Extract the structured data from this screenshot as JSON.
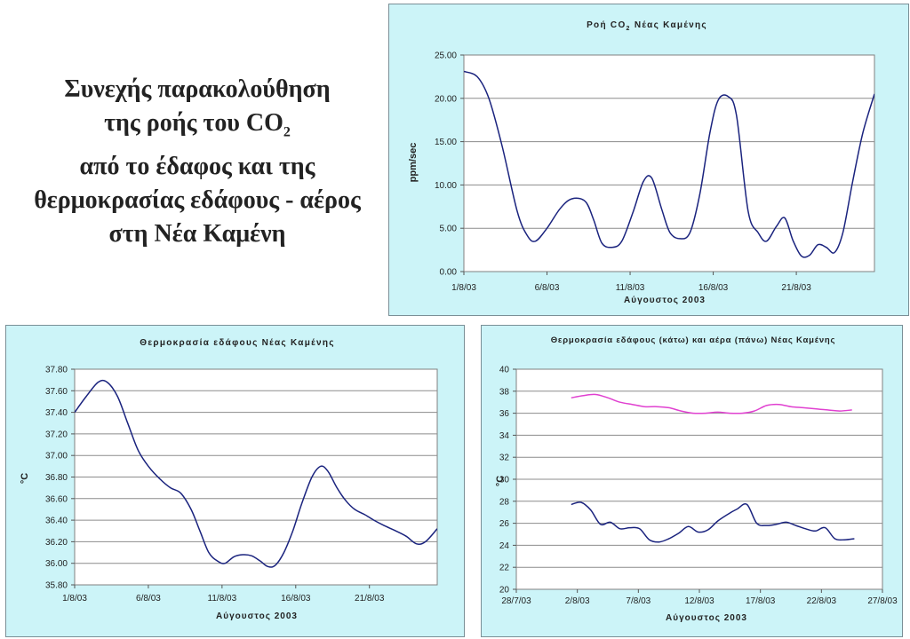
{
  "heading": {
    "line1": "Συνεχής παρακολούθηση",
    "line2_pre": "της ροής του CO",
    "line2_sub": "2",
    "line3": "από το έδαφος και της",
    "line4": "θερμοκρασίας εδάφους - αέρος",
    "line5": "στη Νέα Καμένη"
  },
  "chart_data": [
    {
      "type": "line",
      "title_pre": "Ροή CO",
      "title_sub": "2",
      "title_post": " Νέας Καμένης",
      "xlabel": "Αύγουστος 2003",
      "ylabel": "ppm/sec",
      "x_ticks": [
        "1/8/03",
        "6/8/03",
        "11/8/03",
        "16/8/03",
        "21/8/03"
      ],
      "x_tick_days": [
        1,
        6,
        11,
        16,
        21
      ],
      "xlim": [
        1,
        25.7
      ],
      "ylim": [
        0,
        25
      ],
      "y_ticks": [
        "0.00",
        "5.00",
        "10.00",
        "15.00",
        "20.00",
        "25.00"
      ],
      "y_tick_values": [
        0,
        5,
        10,
        15,
        20,
        25
      ],
      "grid": true,
      "series": [
        {
          "color": "#1a237e",
          "x": [
            1,
            1.8,
            2.5,
            3.3,
            4.2,
            4.8,
            5.3,
            6,
            6.8,
            7.5,
            8.3,
            8.8,
            9.3,
            9.9,
            10.5,
            11.2,
            11.8,
            12.3,
            12.9,
            13.4,
            14,
            14.6,
            15.2,
            15.8,
            16.3,
            16.9,
            17.4,
            18.1,
            18.7,
            19.2,
            19.8,
            20.3,
            20.8,
            21.3,
            21.8,
            22.3,
            22.8,
            23.3,
            23.8,
            24.4,
            25,
            25.7
          ],
          "values": [
            23.1,
            22.5,
            20,
            14.5,
            7,
            4.2,
            3.5,
            5,
            7.3,
            8.4,
            8.1,
            6,
            3.3,
            2.8,
            3.5,
            7,
            10.4,
            10.8,
            7.2,
            4.5,
            3.8,
            4.5,
            9,
            16,
            19.8,
            20.2,
            18,
            7,
            4.5,
            3.5,
            5.2,
            6.2,
            3.6,
            1.8,
            1.9,
            3.1,
            2.8,
            2.2,
            4.5,
            10.5,
            16,
            20.5
          ]
        }
      ]
    },
    {
      "type": "line",
      "title": "Θερμοκρασία εδάφους Νέας Καμένης",
      "xlabel": "Αύγουστος 2003",
      "ylabel": "°C",
      "x_ticks": [
        "1/8/03",
        "6/8/03",
        "11/8/03",
        "16/8/03",
        "21/8/03"
      ],
      "x_tick_days": [
        1,
        6,
        11,
        16,
        21
      ],
      "xlim": [
        1,
        25.6
      ],
      "ylim": [
        35.8,
        37.8
      ],
      "y_ticks": [
        "35.80",
        "36.00",
        "36.20",
        "36.40",
        "36.60",
        "36.80",
        "37.00",
        "37.20",
        "37.40",
        "37.60",
        "37.80"
      ],
      "y_tick_values": [
        35.8,
        36,
        36.2,
        36.4,
        36.6,
        36.8,
        37,
        37.2,
        37.4,
        37.6,
        37.8
      ],
      "grid": true,
      "series": [
        {
          "color": "#1a237e",
          "x": [
            1,
            1.8,
            2.6,
            3.2,
            3.9,
            4.6,
            5.3,
            6,
            6.8,
            7.5,
            8.2,
            8.9,
            9.5,
            10.1,
            10.7,
            11.2,
            11.8,
            12.4,
            13,
            13.6,
            14.1,
            14.6,
            15.2,
            15.8,
            16.4,
            17.1,
            17.7,
            18.2,
            18.8,
            19.4,
            20,
            20.7,
            21.3,
            22,
            22.8,
            23.5,
            24.2,
            24.8,
            25.6
          ],
          "values": [
            37.4,
            37.55,
            37.68,
            37.68,
            37.55,
            37.3,
            37.05,
            36.9,
            36.78,
            36.7,
            36.65,
            36.5,
            36.3,
            36.1,
            36.02,
            36,
            36.06,
            36.08,
            36.07,
            36.02,
            35.97,
            35.98,
            36.1,
            36.3,
            36.55,
            36.8,
            36.9,
            36.85,
            36.7,
            36.58,
            36.5,
            36.45,
            36.4,
            36.35,
            36.3,
            36.25,
            36.18,
            36.2,
            36.32
          ]
        }
      ]
    },
    {
      "type": "line",
      "title": "Θερμοκρασία εδάφους (κάτω) και αέρα (πάνω) Νέας Καμένης",
      "xlabel": "Αύγουστος 2003",
      "ylabel": "°C",
      "x_ticks": [
        "28/7/03",
        "2/8/03",
        "7/8/03",
        "12/8/03",
        "17/8/03",
        "22/8/03",
        "27/8/03"
      ],
      "x_tick_days": [
        -4,
        1,
        6,
        11,
        16,
        21,
        26
      ],
      "xlim": [
        -4,
        26
      ],
      "ylim": [
        20,
        40
      ],
      "y_ticks": [
        "20",
        "22",
        "24",
        "26",
        "28",
        "30",
        "32",
        "34",
        "36",
        "38",
        "40"
      ],
      "y_tick_values": [
        20,
        22,
        24,
        26,
        28,
        30,
        32,
        34,
        36,
        38,
        40
      ],
      "grid": true,
      "series": [
        {
          "color": "#e040d0",
          "x": [
            0.5,
            1.5,
            2.5,
            3.5,
            4.5,
            5.5,
            6.5,
            7.5,
            8.5,
            9.5,
            10.5,
            11.5,
            12.5,
            13.5,
            14.5,
            15.5,
            16.5,
            17.5,
            18.5,
            19.5,
            20.5,
            21.5,
            22.5,
            23.5
          ],
          "values": [
            37.4,
            37.6,
            37.7,
            37.4,
            37,
            36.8,
            36.6,
            36.6,
            36.5,
            36.2,
            36,
            36,
            36.1,
            36,
            36,
            36.2,
            36.7,
            36.8,
            36.6,
            36.5,
            36.4,
            36.3,
            36.2,
            36.3
          ]
        },
        {
          "color": "#1a237e",
          "x": [
            0.5,
            1.3,
            2.1,
            2.9,
            3.7,
            4.5,
            5.3,
            6.1,
            6.9,
            7.7,
            8.5,
            9.3,
            10.1,
            10.9,
            11.7,
            12.5,
            13.3,
            14.1,
            14.9,
            15.7,
            16.5,
            17.3,
            18.1,
            18.9,
            19.7,
            20.5,
            21.3,
            22.1,
            22.9,
            23.7
          ],
          "values": [
            27.7,
            27.9,
            27.2,
            25.9,
            26.1,
            25.5,
            25.6,
            25.5,
            24.5,
            24.3,
            24.6,
            25.1,
            25.7,
            25.2,
            25.4,
            26.2,
            26.8,
            27.3,
            27.7,
            26,
            25.8,
            25.9,
            26.1,
            25.8,
            25.5,
            25.3,
            25.6,
            24.6,
            24.5,
            24.6
          ]
        }
      ]
    }
  ]
}
